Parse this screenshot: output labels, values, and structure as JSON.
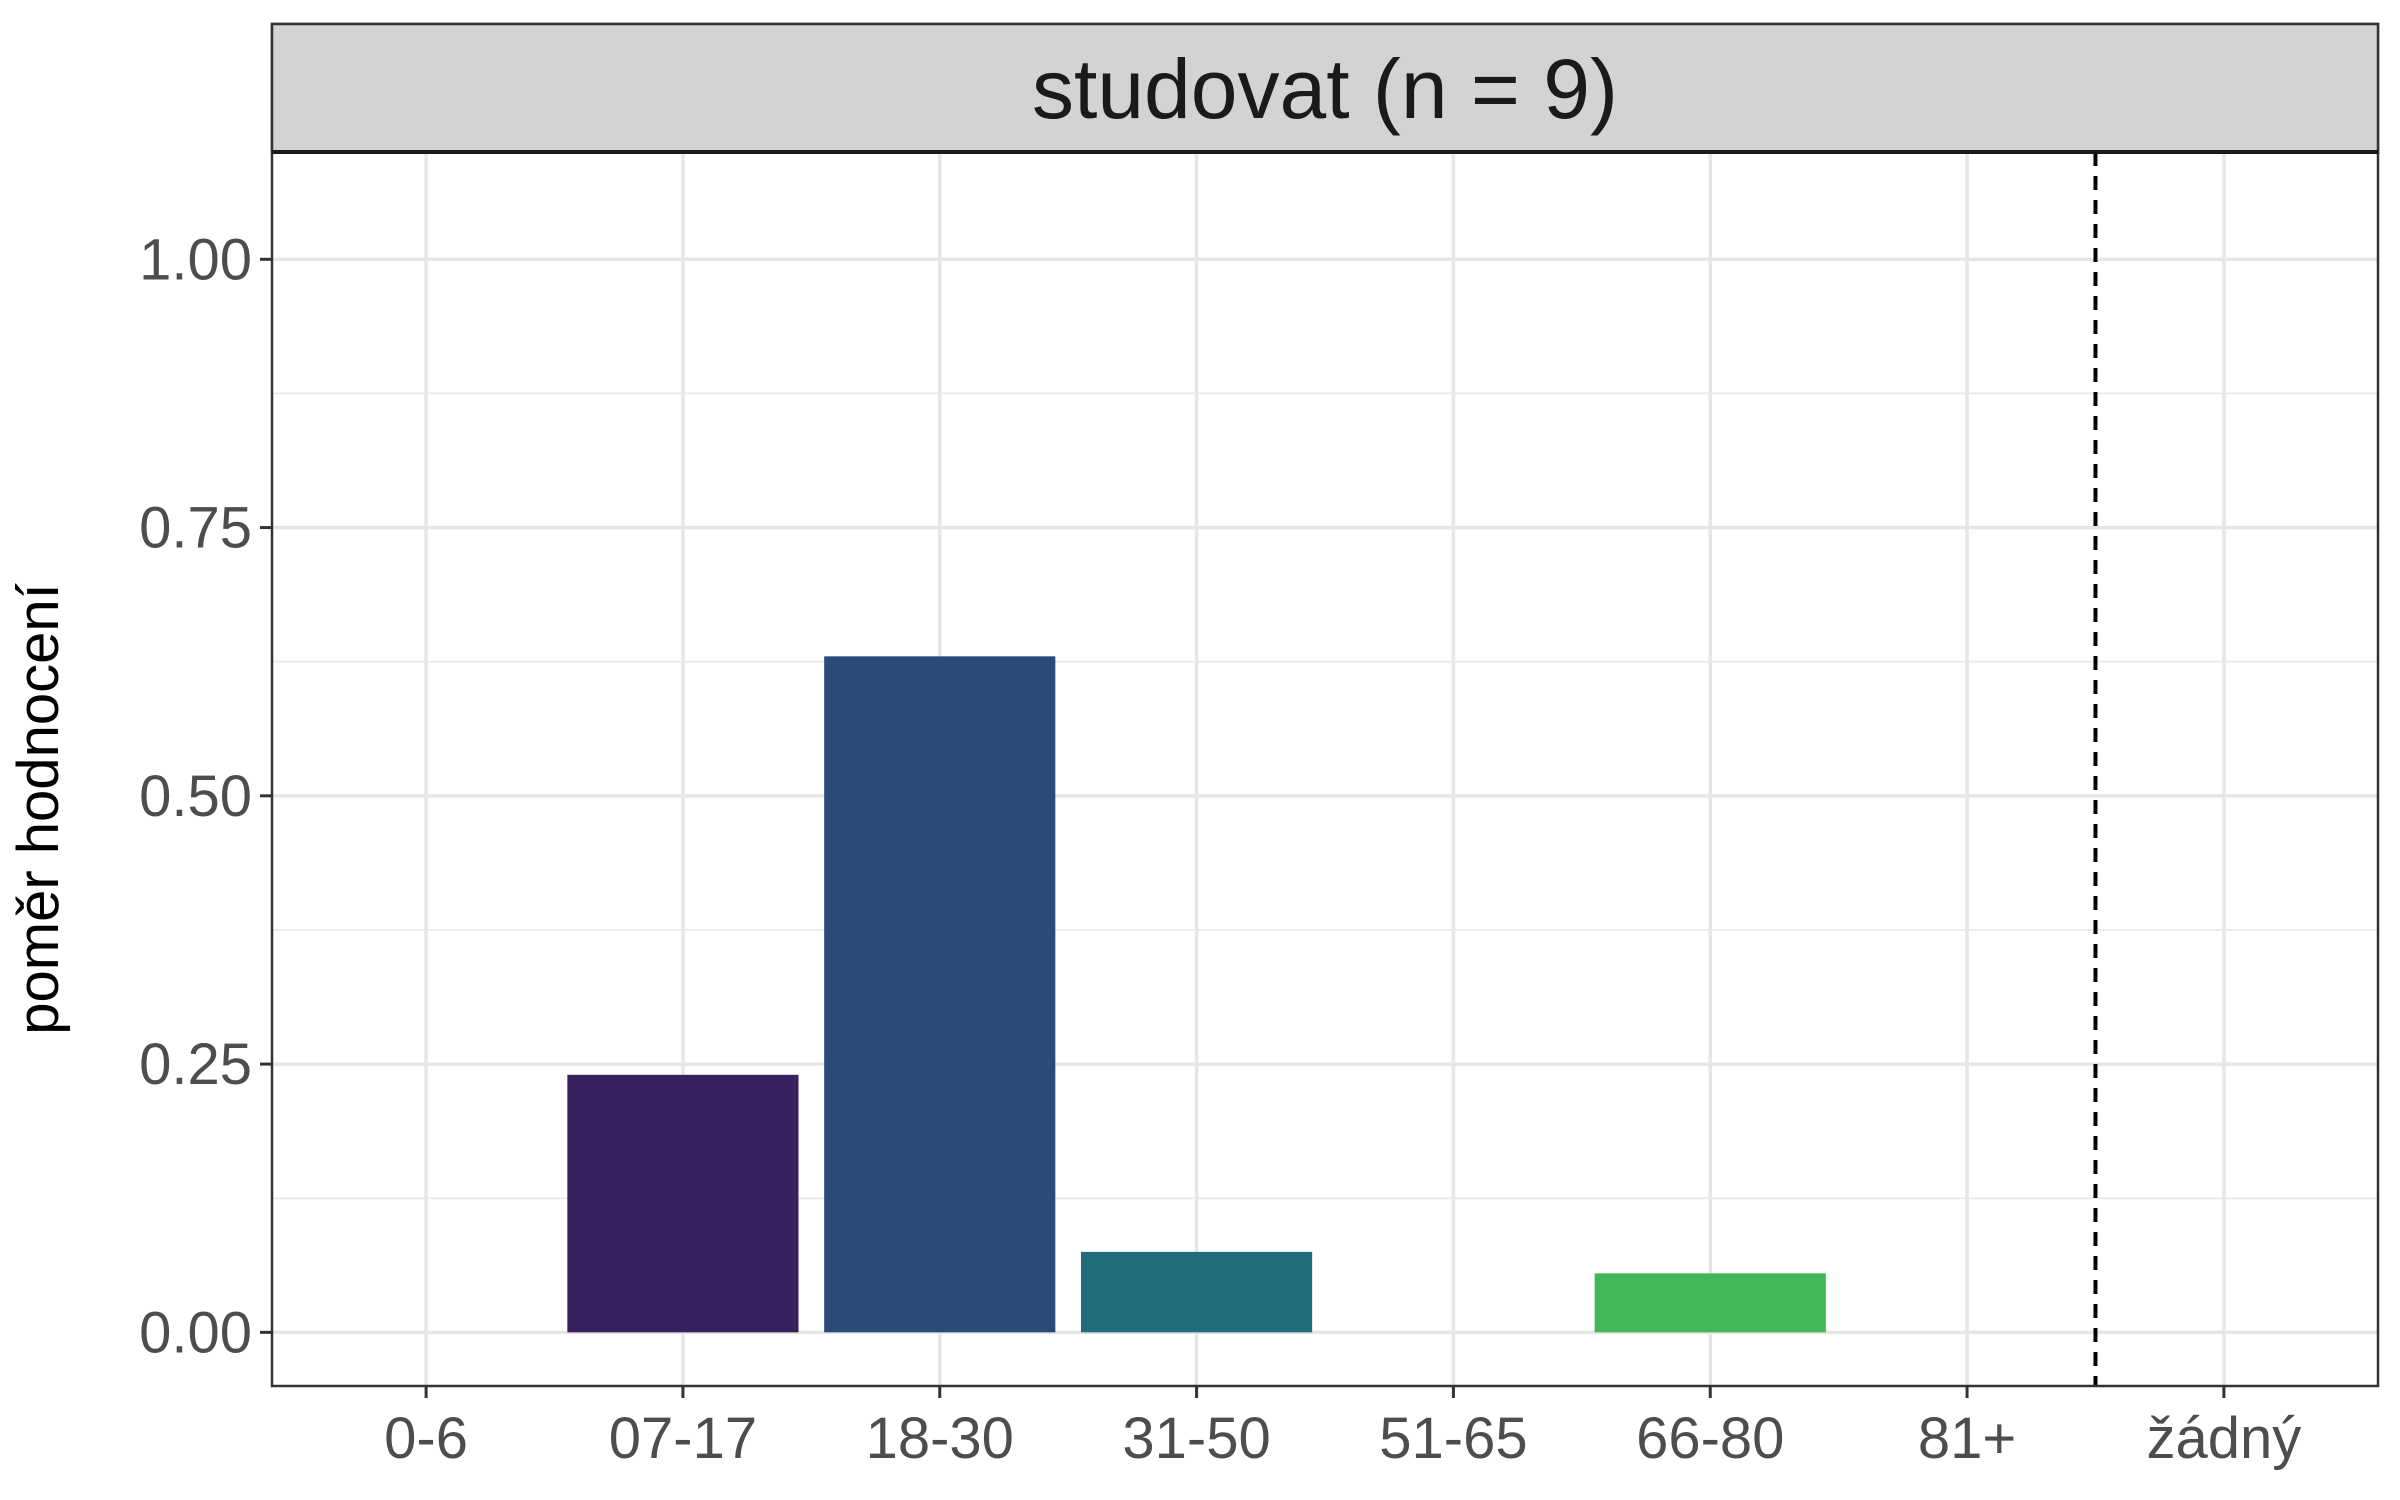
{
  "chart_data": {
    "type": "bar",
    "title": "studovat (n = 9)",
    "xlabel": "",
    "ylabel": "poměr hodnocení",
    "categories": [
      "0-6",
      "07-17",
      "18-30",
      "31-50",
      "51-65",
      "66-80",
      "81+",
      "žádný"
    ],
    "values": [
      0,
      0.24,
      0.63,
      0.075,
      0,
      0.055,
      0,
      0
    ],
    "colors": [
      "#440154",
      "#39205f",
      "#2c4a78",
      "#206e7b",
      "#22a884",
      "#40b858",
      "#9fda3a",
      "#fde725"
    ],
    "yticks": [
      "0.00",
      "0.25",
      "0.50",
      "0.75",
      "1.00"
    ],
    "ytick_values": [
      0,
      0.25,
      0.5,
      0.75,
      1.0
    ],
    "ylim": [
      -0.05,
      1.1
    ],
    "grid": true,
    "reference_line": {
      "between": [
        "81+",
        "žádný"
      ],
      "style": "dashed"
    },
    "strip_color": "#d3d3d3"
  }
}
